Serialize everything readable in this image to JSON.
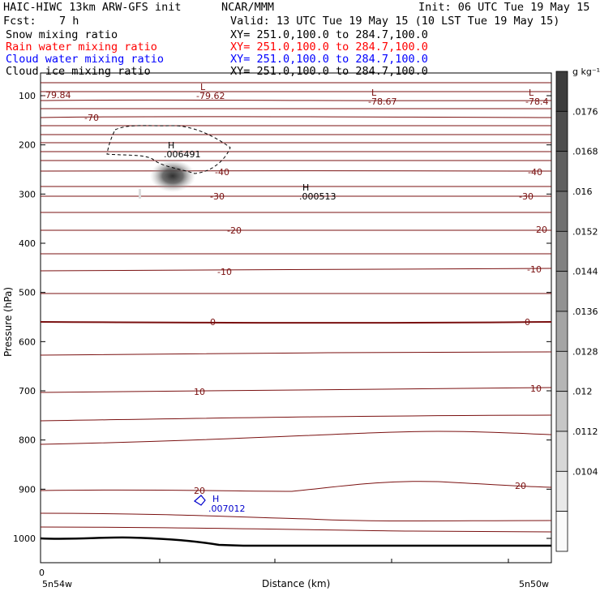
{
  "header": {
    "title": "HAIC-HIWC 13km ARW-GFS init",
    "org": "NCAR/MMM",
    "init": "Init: 06 UTC Tue 19 May 15",
    "fcst_label": "Fcst:",
    "fcst_value": "7 h",
    "valid": "Valid: 13 UTC Tue 19 May 15 (10 LST Tue 19 May 15)",
    "fields": [
      {
        "name": "Snow mixing ratio",
        "xy": "XY= 251.0,100.0 to 284.7,100.0",
        "color": "#000000"
      },
      {
        "name": "Rain water mixing ratio",
        "xy": "XY= 251.0,100.0 to 284.7,100.0",
        "color": "#ff0000"
      },
      {
        "name": "Cloud water mixing ratio",
        "xy": "XY= 251.0,100.0 to 284.7,100.0",
        "color": "#0000ff"
      },
      {
        "name": "Cloud ice mixing ratio",
        "xy": "XY= 251.0,100.0 to 284.7,100.0",
        "color": "#000000"
      }
    ]
  },
  "chart_data": {
    "type": "cross-section",
    "xlabel": "Distance (km)",
    "ylabel": "Pressure (hPa)",
    "x_start_tick": "0",
    "x_left_label": "5n54w",
    "x_right_label": "5n50w",
    "y_ticks": [
      100,
      200,
      300,
      400,
      500,
      600,
      700,
      800,
      900,
      1000
    ],
    "ylim_hpa": [
      50,
      1050
    ],
    "colorbar": {
      "unit": "g kg⁻¹",
      "tick_labels": [
        ".0176",
        ".0168",
        ".016",
        ".0152",
        ".0144",
        ".0136",
        ".0128",
        ".012",
        ".0112",
        ".0104"
      ]
    },
    "temperature_contour_labels": [
      "-70",
      "-40",
      "-40",
      "-30",
      "-30",
      "-20",
      "-20",
      "-10",
      "-10",
      "0",
      "0",
      "10",
      "10",
      "20",
      "20"
    ],
    "extrema": [
      {
        "kind": "L",
        "value": "-79.84"
      },
      {
        "kind": "L",
        "value": "-79.62"
      },
      {
        "kind": "L",
        "value": "-78.67"
      },
      {
        "kind": "L",
        "value": "-78.4"
      },
      {
        "kind": "H",
        "value": ".006491"
      },
      {
        "kind": "H",
        "value": ".000513"
      },
      {
        "kind": "H",
        "value": ".007012"
      }
    ],
    "colors": {
      "temperature": "#7a1010",
      "cloud_water": "#0000cc",
      "cloud_ice": "#000000",
      "snow_shading": "#303030"
    }
  }
}
